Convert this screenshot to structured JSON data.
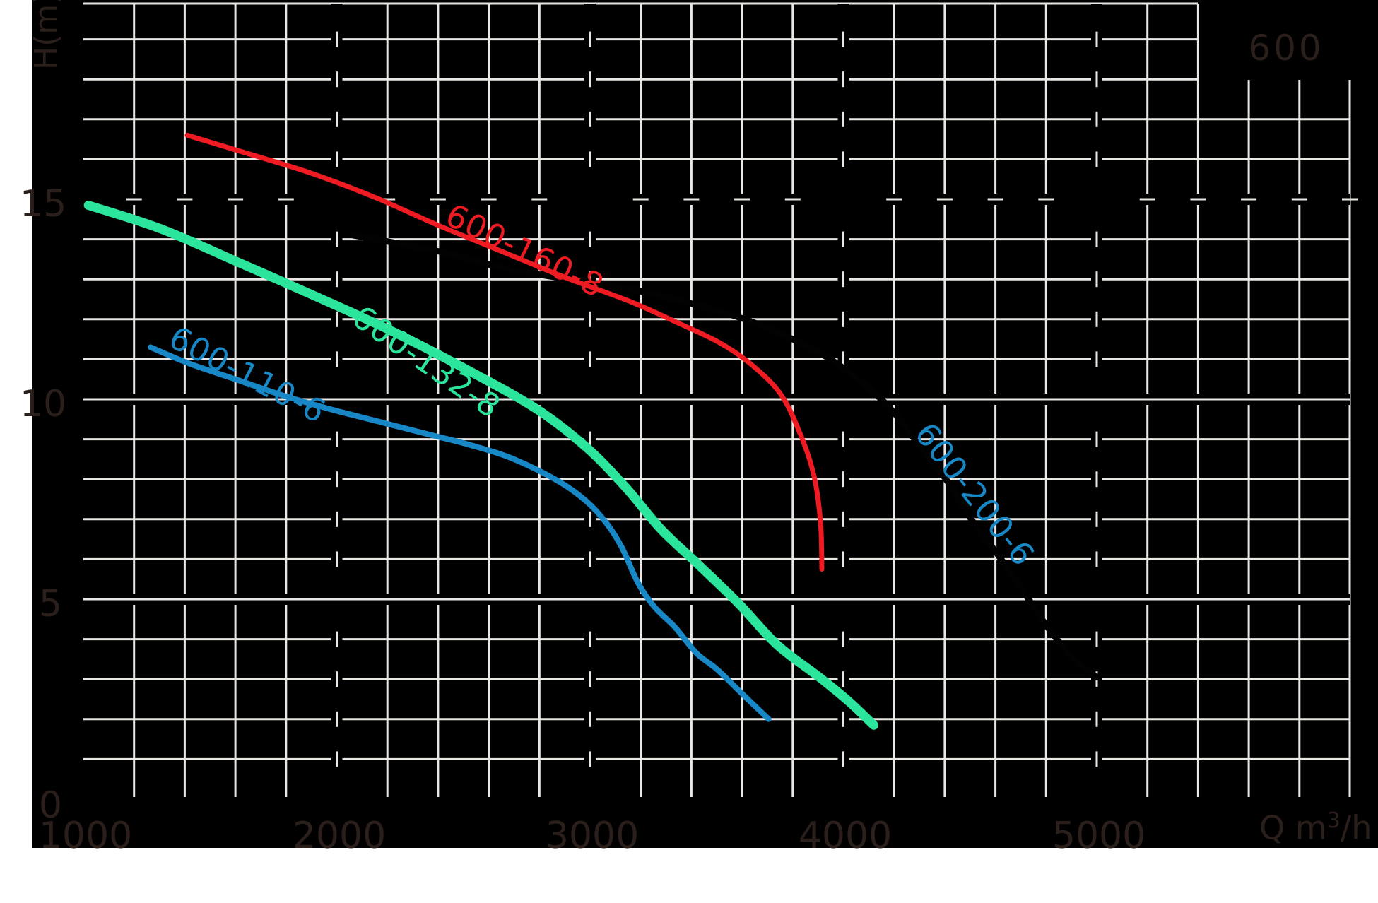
{
  "badge": "600",
  "axes": {
    "y": {
      "label": "H(m)",
      "ticks": [
        {
          "label": "15",
          "h": 15
        },
        {
          "label": "10",
          "h": 10
        },
        {
          "label": "5",
          "h": 5
        },
        {
          "label": "0",
          "h": 0
        }
      ]
    },
    "x": {
      "unit_prefix": "Q m",
      "unit_sup": "3",
      "unit_suffix": "/h",
      "ticks": [
        {
          "label": "1000",
          "q": 1000
        },
        {
          "label": "2000",
          "q": 2000
        },
        {
          "label": "3000",
          "q": 3000
        },
        {
          "label": "4000",
          "q": 4000
        },
        {
          "label": "5000",
          "q": 5000
        }
      ]
    }
  },
  "chart_data": {
    "type": "line",
    "title": "600",
    "xlabel": "Q m³/h",
    "ylabel": "H(m)",
    "xlim": [
      1000,
      6000
    ],
    "ylim": [
      0,
      20
    ],
    "x_ticks": [
      1000,
      2000,
      3000,
      4000,
      5000
    ],
    "y_ticks": [
      0,
      5,
      10,
      15
    ],
    "grid": "minor grid every 200 m³/h and 1 m; major gridlines rendered as short dashes at minor-line crossings",
    "series": [
      {
        "name": "600-160-8",
        "color": "#ee1c22",
        "points": [
          [
            1410,
            16.6
          ],
          [
            1645,
            16.15
          ],
          [
            1900,
            15.65
          ],
          [
            2150,
            15.05
          ],
          [
            2400,
            14.35
          ],
          [
            2650,
            13.7
          ],
          [
            2900,
            13.05
          ],
          [
            3155,
            12.45
          ],
          [
            3350,
            11.9
          ],
          [
            3515,
            11.4
          ],
          [
            3640,
            10.85
          ],
          [
            3755,
            10.1
          ],
          [
            3835,
            9.05
          ],
          [
            3885,
            8.05
          ],
          [
            3910,
            6.9
          ],
          [
            3915,
            5.75
          ]
        ]
      },
      {
        "name": "600-132-8",
        "color": "#2be59c",
        "points": [
          [
            1020,
            14.85
          ],
          [
            1310,
            14.25
          ],
          [
            1620,
            13.4
          ],
          [
            1925,
            12.55
          ],
          [
            2235,
            11.65
          ],
          [
            2540,
            10.65
          ],
          [
            2790,
            9.75
          ],
          [
            2985,
            8.8
          ],
          [
            3140,
            7.8
          ],
          [
            3280,
            6.75
          ],
          [
            3430,
            5.85
          ],
          [
            3585,
            4.9
          ],
          [
            3740,
            3.85
          ],
          [
            3905,
            3.05
          ],
          [
            4020,
            2.45
          ],
          [
            4120,
            1.85
          ]
        ]
      },
      {
        "name": "600-110-6",
        "color": "#1787c6",
        "points": [
          [
            1265,
            11.3
          ],
          [
            1415,
            10.9
          ],
          [
            1600,
            10.5
          ],
          [
            1785,
            10.1
          ],
          [
            1975,
            9.75
          ],
          [
            2160,
            9.45
          ],
          [
            2345,
            9.15
          ],
          [
            2530,
            8.85
          ],
          [
            2700,
            8.5
          ],
          [
            2875,
            7.95
          ],
          [
            2985,
            7.45
          ],
          [
            3065,
            6.9
          ],
          [
            3125,
            6.3
          ],
          [
            3190,
            5.4
          ],
          [
            3255,
            4.8
          ],
          [
            3335,
            4.3
          ],
          [
            3420,
            3.65
          ],
          [
            3500,
            3.25
          ],
          [
            3590,
            2.7
          ],
          [
            3705,
            2.0
          ]
        ]
      },
      {
        "name": "600-200-6",
        "color": "#020202",
        "label_color": "#1787c6",
        "points": [
          [
            2065,
            14.1
          ],
          [
            2400,
            13.7
          ],
          [
            2680,
            13.25
          ],
          [
            3020,
            12.9
          ],
          [
            3200,
            12.7
          ],
          [
            3395,
            12.4
          ],
          [
            3610,
            12.0
          ],
          [
            3800,
            11.5
          ],
          [
            3960,
            10.95
          ],
          [
            4115,
            10.2
          ],
          [
            4215,
            9.55
          ],
          [
            4310,
            8.75
          ],
          [
            4410,
            7.95
          ],
          [
            4510,
            6.95
          ],
          [
            4605,
            6.15
          ],
          [
            4705,
            5.25
          ],
          [
            4800,
            4.35
          ],
          [
            4910,
            3.5
          ],
          [
            5000,
            3.05
          ]
        ]
      }
    ]
  }
}
